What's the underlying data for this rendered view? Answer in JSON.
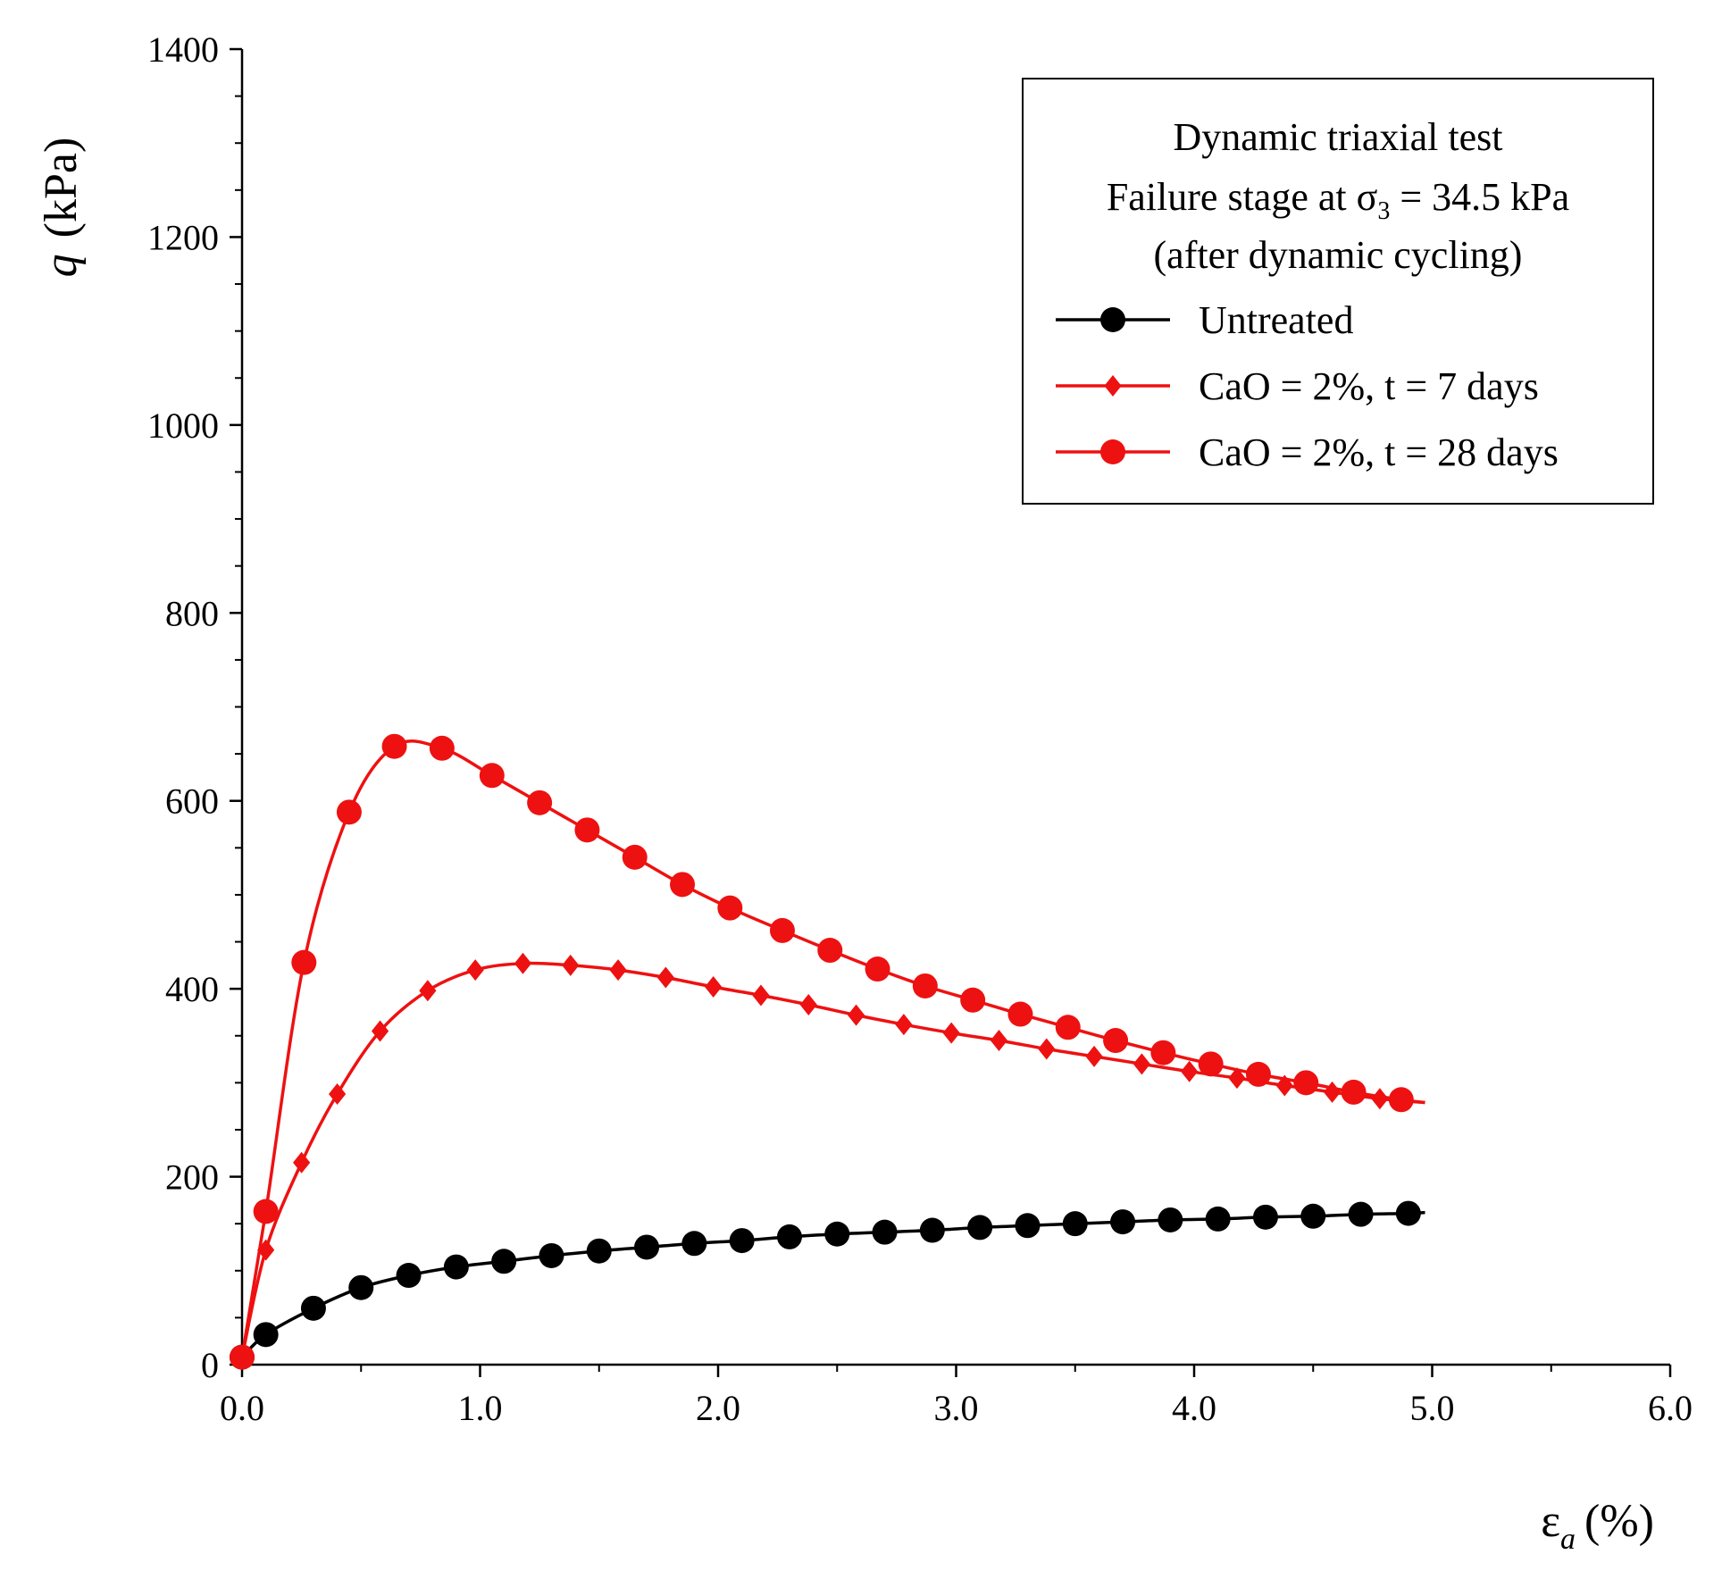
{
  "chart_data": {
    "type": "line",
    "xlabel_symbol": "ε",
    "xlabel_sub": "a",
    "xlabel_unit": "(%)",
    "ylabel_symbol": "q",
    "ylabel_unit": "(kPa)",
    "xlim": [
      0,
      6
    ],
    "ylim": [
      0,
      1400
    ],
    "x_major_ticks": [
      0,
      1,
      2,
      3,
      4,
      5,
      6
    ],
    "x_tick_labels": [
      "0.0",
      "1.0",
      "2.0",
      "3.0",
      "4.0",
      "5.0",
      "6.0"
    ],
    "y_major_ticks": [
      0,
      200,
      400,
      600,
      800,
      1000,
      1200,
      1400
    ],
    "y_tick_labels": [
      "0",
      "200",
      "400",
      "600",
      "800",
      "1000",
      "1200",
      "1400"
    ],
    "legend_position": "top-right",
    "legend_title": {
      "line1": "Dynamic triaxial test",
      "line2_prefix": "Failure stage at ",
      "line2_symbol": "σ",
      "line2_sub": "3",
      "line2_suffix": " = 34.5 kPa",
      "line3": "(after dynamic cycling)"
    },
    "series": [
      {
        "name": "Untreated",
        "color": "#000000",
        "marker": "circle",
        "x": [
          0.0,
          0.1,
          0.3,
          0.5,
          0.7,
          0.9,
          1.1,
          1.3,
          1.5,
          1.7,
          1.9,
          2.1,
          2.3,
          2.5,
          2.7,
          2.9,
          3.1,
          3.3,
          3.5,
          3.7,
          3.9,
          4.1,
          4.3,
          4.5,
          4.7,
          4.9
        ],
        "y": [
          8,
          32,
          60,
          82,
          95,
          104,
          110,
          116,
          121,
          125,
          129,
          132,
          136,
          139,
          141,
          143,
          146,
          148,
          150,
          152,
          154,
          155,
          157,
          158,
          160,
          161
        ],
        "line_x_end": 4.97,
        "line_y_end": 162
      },
      {
        "name": "CaO = 2%, t = 7 days",
        "color": "#ee1111",
        "marker": "diamond",
        "x": [
          0.0,
          0.1,
          0.25,
          0.4,
          0.58,
          0.78,
          0.98,
          1.18,
          1.38,
          1.58,
          1.78,
          1.98,
          2.18,
          2.38,
          2.58,
          2.78,
          2.98,
          3.18,
          3.38,
          3.58,
          3.78,
          3.98,
          4.18,
          4.38,
          4.58,
          4.78
        ],
        "y": [
          8,
          122,
          215,
          288,
          355,
          398,
          420,
          427,
          425,
          420,
          412,
          402,
          393,
          383,
          372,
          362,
          353,
          345,
          336,
          328,
          320,
          312,
          305,
          297,
          290,
          283
        ],
        "line_x_end": 4.97,
        "line_y_end": 279
      },
      {
        "name": "CaO = 2%, t = 28 days",
        "color": "#ee1111",
        "marker": "circle",
        "x": [
          0.0,
          0.1,
          0.26,
          0.45,
          0.64,
          0.84,
          1.05,
          1.25,
          1.45,
          1.65,
          1.85,
          2.05,
          2.27,
          2.47,
          2.67,
          2.87,
          3.07,
          3.27,
          3.47,
          3.67,
          3.87,
          4.07,
          4.27,
          4.47,
          4.67,
          4.87
        ],
        "y": [
          8,
          163,
          428,
          588,
          658,
          656,
          627,
          598,
          569,
          540,
          511,
          486,
          462,
          441,
          421,
          403,
          388,
          373,
          359,
          345,
          332,
          320,
          309,
          300,
          290,
          282
        ],
        "line_x_end": 4.97,
        "line_y_end": 279
      }
    ]
  }
}
